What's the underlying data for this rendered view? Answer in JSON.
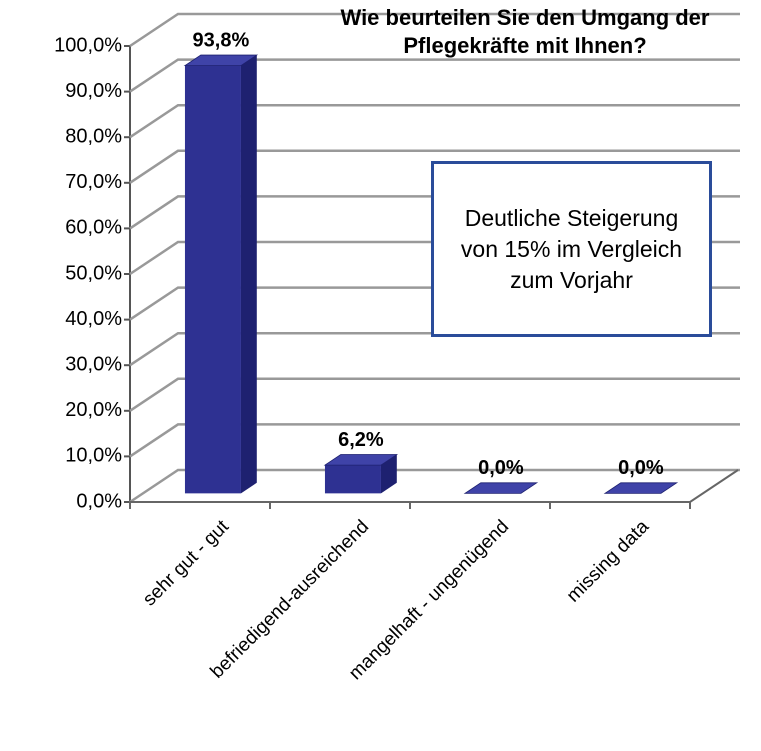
{
  "chart_data": {
    "type": "bar3d",
    "title": "Wie beurteilen Sie den Umgang der Pflegekräfte mit Ihnen?",
    "annotation": "Deutliche Steigerung von 15% im Vergleich zum Vorjahr",
    "categories": [
      "sehr gut - gut",
      "befriedigend-ausreichend",
      "mangelhaft - ungenügend",
      "missing data"
    ],
    "values": [
      93.8,
      6.2,
      0,
      0
    ],
    "value_labels": [
      "93,8%",
      "6,2%",
      "0,0%",
      "0,0%"
    ],
    "color": "#2e3192",
    "ylim": [
      0,
      100
    ],
    "yticks": [
      {
        "value": 0,
        "label": "0,0%"
      },
      {
        "value": 10,
        "label": "10,0%"
      },
      {
        "value": 20,
        "label": "20,0%"
      },
      {
        "value": 30,
        "label": "30,0%"
      },
      {
        "value": 40,
        "label": "40,0%"
      },
      {
        "value": 50,
        "label": "50,0%"
      },
      {
        "value": 60,
        "label": "60,0%"
      },
      {
        "value": 70,
        "label": "70,0%"
      },
      {
        "value": 80,
        "label": "80,0%"
      },
      {
        "value": 90,
        "label": "90,0%"
      },
      {
        "value": 100,
        "label": "100,0%"
      }
    ],
    "grid": true
  }
}
